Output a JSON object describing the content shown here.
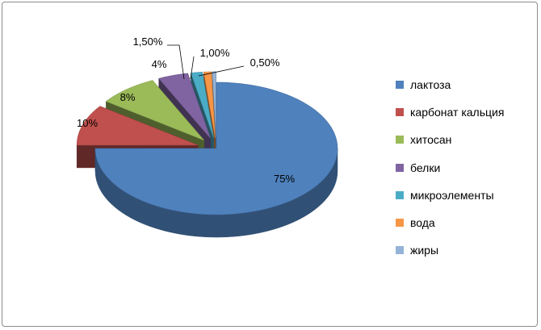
{
  "chart_data": {
    "type": "pie",
    "variant": "3d-exploded",
    "categories": [
      "лактоза",
      "карбонат кальция",
      "хитосан",
      "белки",
      "микроэлементы",
      "вода",
      "жиры"
    ],
    "values": [
      75,
      10,
      8,
      4,
      1.5,
      1.0,
      0.5
    ],
    "data_labels": [
      "75%",
      "10%",
      "8%",
      "4%",
      "1,50%",
      "1,00%",
      "0,50%"
    ],
    "colors": [
      "#4F81BD",
      "#C0504D",
      "#9BBB59",
      "#8064A2",
      "#4BACC6",
      "#F79646",
      "#95B3D7"
    ],
    "legend_position": "right",
    "title": ""
  }
}
